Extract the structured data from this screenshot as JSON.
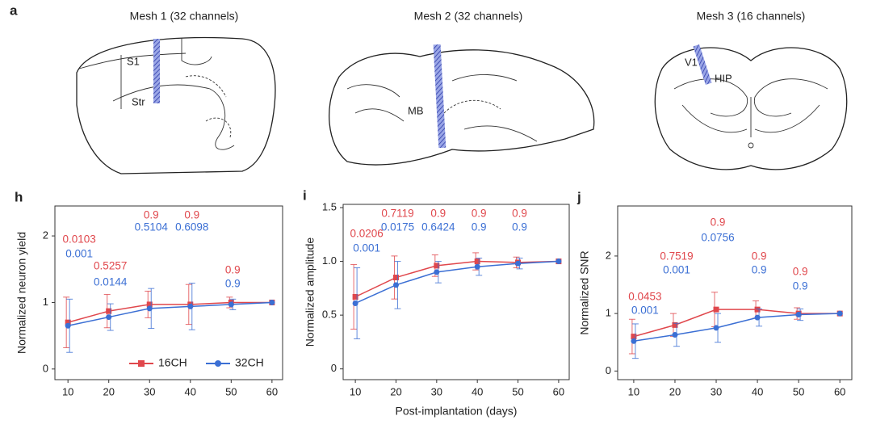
{
  "figure": {
    "panel_a": "a",
    "meshes": [
      {
        "title": "Mesh 1 (32 channels)",
        "regions": [
          "S1",
          "Str"
        ]
      },
      {
        "title": "Mesh 2 (32 channels)",
        "regions": [
          "MB"
        ]
      },
      {
        "title": "Mesh 3 (16 channels)",
        "regions": [
          "V1",
          "HIP"
        ]
      }
    ]
  },
  "chart_data": [
    {
      "type": "line",
      "panel": "h",
      "ylabel": "Normalized neuron yield",
      "x": [
        10,
        20,
        30,
        40,
        50,
        60
      ],
      "xlim": [
        6.8,
        62.6
      ],
      "xticks": [
        10,
        20,
        30,
        40,
        50,
        60
      ],
      "ylim": [
        -0.16,
        2.45
      ],
      "yticks": [
        0,
        1,
        2
      ],
      "legend": "lower right",
      "series": [
        {
          "name": "16CH",
          "color": "#e0474c",
          "marker": "square",
          "values": [
            0.7,
            0.87,
            0.97,
            0.97,
            1.0,
            1.0
          ],
          "errors": [
            0.38,
            0.25,
            0.2,
            0.3,
            0.08,
            0
          ],
          "p_labels": [
            "0.0103",
            "0.5257",
            "0.9",
            "0.9",
            "0.9",
            null
          ]
        },
        {
          "name": "32CH",
          "color": "#3b6fd4",
          "marker": "circle",
          "values": [
            0.65,
            0.78,
            0.91,
            0.94,
            0.97,
            1.0
          ],
          "errors": [
            0.4,
            0.2,
            0.3,
            0.35,
            0.08,
            0
          ],
          "p_labels": [
            "0.001",
            "0.0144",
            "0.5104",
            "0.6098",
            "0.9",
            null
          ]
        }
      ]
    },
    {
      "type": "line",
      "panel": "i",
      "ylabel": "Normalized amplitude",
      "xlabel": "Post-implantation (days)",
      "x": [
        10,
        20,
        30,
        40,
        50,
        60
      ],
      "xlim": [
        7.0,
        62.6
      ],
      "xticks": [
        10,
        20,
        30,
        40,
        50,
        60
      ],
      "ylim": [
        -0.1,
        1.53
      ],
      "yticks": [
        0,
        0.5,
        {
          "value": 1,
          "label": "1.0"
        },
        1.5
      ],
      "series": [
        {
          "name": "16CH",
          "color": "#e0474c",
          "marker": "square",
          "values": [
            0.67,
            0.85,
            0.96,
            1.0,
            0.99,
            1.0
          ],
          "errors": [
            0.3,
            0.2,
            0.1,
            0.08,
            0.05,
            0
          ],
          "p_labels": [
            "0.0206",
            "0.7119",
            "0.9",
            "0.9",
            "0.9",
            null
          ]
        },
        {
          "name": "32CH",
          "color": "#3b6fd4",
          "marker": "circle",
          "values": [
            0.61,
            0.78,
            0.9,
            0.95,
            0.98,
            1.0
          ],
          "errors": [
            0.33,
            0.22,
            0.1,
            0.08,
            0.05,
            0
          ],
          "p_labels": [
            "0.001",
            "0.0175",
            "0.6424",
            "0.9",
            "0.9",
            null
          ]
        }
      ]
    },
    {
      "type": "line",
      "panel": "j",
      "ylabel": "Normalized SNR",
      "x": [
        10,
        20,
        30,
        40,
        50,
        60
      ],
      "xlim": [
        6.1,
        62.9
      ],
      "xticks": [
        10,
        20,
        30,
        40,
        50,
        60
      ],
      "ylim": [
        -0.15,
        2.87
      ],
      "yticks": [
        0,
        1,
        2
      ],
      "series": [
        {
          "name": "16CH",
          "color": "#e0474c",
          "marker": "square",
          "values": [
            0.6,
            0.8,
            1.07,
            1.07,
            1.0,
            1.0
          ],
          "errors": [
            0.3,
            0.2,
            0.3,
            0.15,
            0.1,
            0
          ],
          "p_labels": [
            "0.0453",
            "0.7519",
            "0.9",
            "0.9",
            "0.9",
            null
          ]
        },
        {
          "name": "32CH",
          "color": "#3b6fd4",
          "marker": "circle",
          "values": [
            0.52,
            0.63,
            0.75,
            0.93,
            0.98,
            1.0
          ],
          "errors": [
            0.3,
            0.2,
            0.25,
            0.15,
            0.1,
            0
          ],
          "p_labels": [
            "0.001",
            "0.001",
            "0.0756",
            "0.9",
            "0.9",
            null
          ]
        }
      ]
    }
  ]
}
